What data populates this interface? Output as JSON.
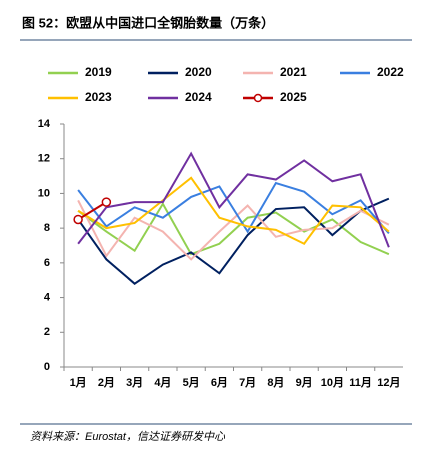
{
  "chart_data": {
    "type": "line",
    "title": "图 52：欧盟从中国进口全钢胎数量（万条）",
    "source": "资料来源：Eurostat，信达证券研发中心",
    "categories": [
      "1月",
      "2月",
      "3月",
      "4月",
      "5月",
      "6月",
      "7月",
      "8月",
      "9月",
      "10月",
      "11月",
      "12月"
    ],
    "ylim": [
      0,
      14
    ],
    "yticks": [
      0,
      2,
      4,
      6,
      8,
      10,
      12,
      14
    ],
    "grid": false,
    "series": [
      {
        "name": "2019",
        "color": "#92d050",
        "values": [
          9.0,
          7.8,
          6.7,
          9.4,
          6.5,
          7.1,
          8.6,
          8.9,
          7.8,
          8.5,
          7.2,
          6.5
        ]
      },
      {
        "name": "2020",
        "color": "#002060",
        "values": [
          8.5,
          6.2,
          4.8,
          5.9,
          6.6,
          5.4,
          7.6,
          9.1,
          9.2,
          7.6,
          9.0,
          9.7
        ]
      },
      {
        "name": "2021",
        "color": "#f4b4b0",
        "values": [
          9.6,
          6.4,
          8.6,
          7.8,
          6.2,
          7.8,
          9.3,
          7.5,
          7.9,
          8.0,
          9.0,
          8.2
        ]
      },
      {
        "name": "2022",
        "color": "#3a7fe0",
        "values": [
          10.2,
          8.1,
          9.2,
          8.6,
          9.8,
          10.4,
          7.8,
          10.6,
          10.1,
          8.8,
          9.6,
          7.7
        ]
      },
      {
        "name": "2023",
        "color": "#ffc000",
        "values": [
          9.0,
          8.0,
          8.3,
          9.6,
          10.9,
          8.6,
          8.1,
          7.9,
          7.1,
          9.3,
          9.2,
          7.8
        ]
      },
      {
        "name": "2024",
        "color": "#7030a0",
        "values": [
          7.1,
          9.2,
          9.5,
          9.5,
          12.3,
          9.2,
          11.1,
          10.8,
          11.9,
          10.7,
          11.1,
          6.9
        ]
      },
      {
        "name": "2025",
        "color": "#c00000",
        "marker": "circle",
        "values": [
          8.5,
          9.5,
          null,
          null,
          null,
          null,
          null,
          null,
          null,
          null,
          null,
          null
        ]
      }
    ]
  }
}
